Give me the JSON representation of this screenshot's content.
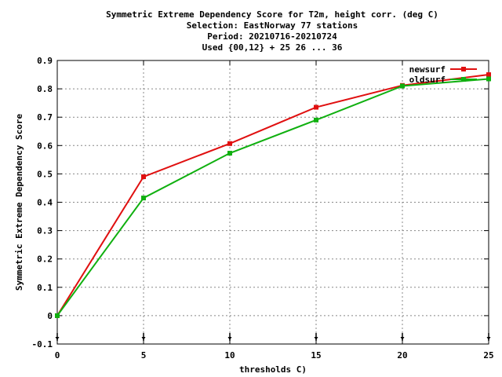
{
  "chart_data": {
    "type": "line",
    "title_lines": [
      "Symmetric Extreme Dependency Score  for T2m, height corr. (deg C)",
      "Selection: EastNorway     77 stations",
      "Period: 20210716-20210724",
      "Used {00,12} + 25 26 ... 36"
    ],
    "xlabel": "thresholds C)",
    "ylabel": "Symmetric Extreme Dependency Score",
    "xlim": [
      0,
      25
    ],
    "ylim": [
      -0.1,
      0.9
    ],
    "xticks": [
      0,
      5,
      10,
      15,
      20,
      25
    ],
    "yticks": [
      -0.1,
      0,
      0.1,
      0.2,
      0.3,
      0.4,
      0.5,
      0.6,
      0.7,
      0.8,
      0.9
    ],
    "x_tick_labels": [
      "0",
      "5",
      "10",
      "15",
      "20",
      "25"
    ],
    "y_tick_labels": [
      "-0.1",
      "0",
      "0.1",
      "0.2",
      "0.3",
      "0.4",
      "0.5",
      "0.6",
      "0.7",
      "0.8",
      "0.9"
    ],
    "grid": true,
    "legend_position": "top-right",
    "series": [
      {
        "name": "newsurf",
        "color": "#e01010",
        "x": [
          0,
          5,
          10,
          15,
          20,
          25
        ],
        "y": [
          0.0,
          0.49,
          0.607,
          0.735,
          0.812,
          0.85
        ]
      },
      {
        "name": "oldsurf",
        "color": "#10b010",
        "x": [
          0,
          5,
          10,
          15,
          20,
          25
        ],
        "y": [
          0.0,
          0.415,
          0.573,
          0.69,
          0.81,
          0.835
        ]
      }
    ],
    "marker_row_x": [
      0,
      5,
      10,
      15,
      20,
      25
    ]
  }
}
